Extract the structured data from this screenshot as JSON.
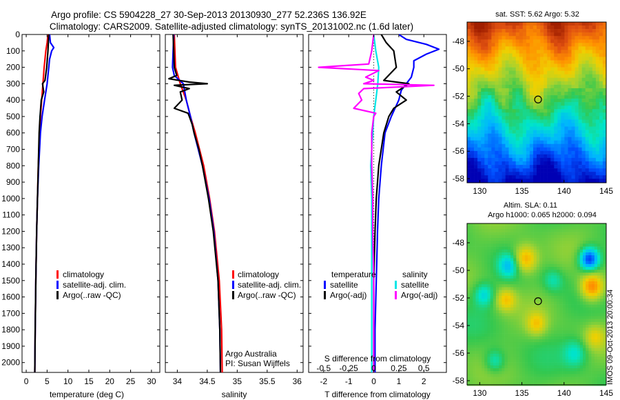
{
  "header": {
    "title_line1": "Argo profile: CS 5904228_27 30-Sep-2013 20130930_277 52.236S 136.92E",
    "title_line2": "Climatology: CARS2009. Satellite-adjusted climatology: synTS_20131002.nc (1.6d later)"
  },
  "colors": {
    "climatology": "#ff0000",
    "satellite": "#0000ff",
    "argo": "#000000",
    "salinity_satellite": "#00e6e6",
    "salinity_argo": "#ff00ff"
  },
  "chart_data": [
    {
      "type": "line",
      "id": "temperature",
      "xlabel": "temperature (deg C)",
      "xlim": [
        -1,
        32
      ],
      "ylim": [
        0,
        2060
      ],
      "ylabel": "",
      "x_ticks": [
        "0",
        "5",
        "10",
        "15",
        "20",
        "25",
        "30"
      ],
      "y_ticks": [
        "0",
        "100",
        "200",
        "300",
        "400",
        "500",
        "600",
        "700",
        "800",
        "900",
        "1000",
        "1100",
        "1200",
        "1300",
        "1400",
        "1500",
        "1600",
        "1700",
        "1800",
        "1900",
        "2000"
      ],
      "legend": [
        "climatology",
        "satellite-adj. clim.",
        "Argo(..raw -QC)"
      ],
      "series": [
        {
          "name": "climatology",
          "color_key": "climatology",
          "depth": [
            0,
            50,
            100,
            200,
            300,
            400,
            500,
            600,
            800,
            1000,
            1200,
            1500,
            1800,
            2060
          ],
          "values": [
            5.2,
            5.0,
            4.7,
            4.3,
            4.0,
            3.7,
            3.4,
            3.2,
            2.9,
            2.7,
            2.5,
            2.3,
            2.15,
            2.05
          ]
        },
        {
          "name": "satellite-adj. clim.",
          "color_key": "satellite",
          "depth": [
            0,
            50,
            80,
            100,
            150,
            200,
            300,
            400,
            500,
            600,
            800,
            1000,
            1200,
            1500,
            1800,
            2060
          ],
          "values": [
            5.6,
            5.8,
            6.6,
            6.1,
            5.6,
            5.4,
            5.0,
            4.4,
            3.8,
            3.4,
            3.0,
            2.7,
            2.5,
            2.3,
            2.15,
            2.05
          ]
        },
        {
          "name": "Argo(..raw -QC)",
          "color_key": "argo",
          "depth": [
            0,
            50,
            100,
            200,
            280,
            300,
            350,
            400,
            500,
            600,
            800,
            1000,
            1200,
            1500,
            1800,
            2060
          ],
          "values": [
            5.4,
            5.3,
            5.2,
            4.9,
            4.5,
            3.9,
            4.2,
            3.6,
            3.3,
            3.1,
            2.9,
            2.7,
            2.5,
            2.3,
            2.15,
            2.05
          ]
        }
      ]
    },
    {
      "type": "line",
      "id": "salinity",
      "xlabel": "salinity",
      "xlim": [
        33.8,
        36.1
      ],
      "ylim": [
        0,
        2060
      ],
      "x_ticks": [
        "34",
        "34.5",
        "35",
        "35.5",
        "36"
      ],
      "legend": [
        "climatology",
        "satellite-adj. clim.",
        "Argo(..raw -QC)"
      ],
      "annotation_lines": [
        "Argo Australia",
        "PI: Susan Wijffels"
      ],
      "series": [
        {
          "name": "climatology",
          "color_key": "climatology",
          "depth": [
            0,
            100,
            200,
            300,
            400,
            500,
            600,
            800,
            1000,
            1200,
            1500,
            1800,
            2060
          ],
          "values": [
            33.95,
            33.96,
            33.97,
            34.05,
            34.15,
            34.22,
            34.3,
            34.44,
            34.54,
            34.62,
            34.7,
            34.74,
            34.75
          ]
        },
        {
          "name": "satellite-adj. clim.",
          "color_key": "satellite",
          "depth": [
            0,
            100,
            200,
            250,
            300,
            400,
            500,
            600,
            800,
            1000,
            1200,
            1500,
            1800,
            2060
          ],
          "values": [
            33.94,
            33.93,
            33.92,
            33.95,
            34.1,
            34.15,
            34.22,
            34.28,
            34.42,
            34.53,
            34.61,
            34.68,
            34.71,
            34.72
          ]
        },
        {
          "name": "Argo(..raw -QC)",
          "color_key": "argo",
          "depth": [
            0,
            100,
            200,
            250,
            270,
            290,
            300,
            310,
            330,
            350,
            400,
            450,
            480,
            500,
            550,
            600,
            700,
            800,
            1000,
            1200,
            1500,
            1800,
            2060
          ],
          "values": [
            33.93,
            33.94,
            33.95,
            33.99,
            33.86,
            34.2,
            34.5,
            33.95,
            34.2,
            34.05,
            34.08,
            33.95,
            34.18,
            34.2,
            34.25,
            34.28,
            34.36,
            34.42,
            34.52,
            34.6,
            34.68,
            34.71,
            34.72
          ]
        }
      ]
    },
    {
      "type": "line",
      "id": "difference",
      "xlabel": "T difference from climatology",
      "x2label": "S difference from climatology",
      "xlim": [
        -2.6,
        2.9
      ],
      "x2lim": [
        -0.65,
        0.725
      ],
      "ylim": [
        0,
        2060
      ],
      "x_ticks": [
        "-2",
        "-1",
        "0",
        "1",
        "2"
      ],
      "x2_ticks": [
        "-0.5",
        "-0.25",
        "0",
        "0.25",
        "0.5"
      ],
      "legend_temperature_title": "temperature",
      "legend_salinity_title": "salinity",
      "legend": [
        "satellite",
        "Argo(-adj)",
        "satellite",
        "Argo(-adj)"
      ],
      "series": [
        {
          "name": "temperature satellite",
          "color_key": "satellite",
          "axis": "T",
          "depth": [
            0,
            30,
            60,
            90,
            120,
            160,
            200,
            260,
            300,
            340,
            400,
            500,
            600,
            800,
            1000,
            1200,
            1500,
            1800,
            2060
          ],
          "values": [
            1.0,
            1.3,
            2.1,
            2.6,
            2.1,
            1.6,
            1.6,
            1.5,
            1.3,
            1.1,
            1.0,
            0.7,
            0.45,
            0.3,
            0.2,
            0.15,
            0.1,
            0.05,
            0.05
          ]
        },
        {
          "name": "temperature Argo(-adj)",
          "color_key": "argo",
          "axis": "T",
          "depth": [
            0,
            50,
            100,
            200,
            280,
            300,
            350,
            400,
            450,
            500,
            600,
            800,
            1000,
            1200,
            1500,
            1800,
            2060
          ],
          "values": [
            0.3,
            0.5,
            0.8,
            0.9,
            0.4,
            1.4,
            0.9,
            1.3,
            0.8,
            0.6,
            0.4,
            0.2,
            0.1,
            0.05,
            0.0,
            0.0,
            0.0
          ]
        },
        {
          "name": "salinity satellite",
          "color_key": "salinity_satellite",
          "axis": "S",
          "depth": [
            0,
            100,
            200,
            300,
            400,
            500,
            600,
            700,
            800,
            1000,
            1200,
            1500,
            1800,
            2060
          ],
          "values": [
            0.0,
            0.02,
            0.05,
            0.04,
            0.02,
            0.0,
            -0.01,
            -0.02,
            -0.03,
            -0.02,
            -0.02,
            -0.02,
            -0.02,
            -0.02
          ]
        },
        {
          "name": "salinity Argo(-adj)",
          "color_key": "salinity_argo",
          "axis": "S",
          "depth": [
            0,
            100,
            180,
            200,
            220,
            260,
            280,
            300,
            310,
            330,
            360,
            400,
            450,
            480,
            500,
            600,
            800,
            1000,
            1200,
            1500,
            1800,
            2060
          ],
          "values": [
            0.0,
            -0.02,
            -0.05,
            -0.55,
            0.05,
            -0.08,
            0.0,
            -0.1,
            0.6,
            -0.1,
            -0.15,
            -0.12,
            -0.2,
            0.02,
            0.0,
            -0.02,
            -0.02,
            -0.01,
            -0.01,
            0.0,
            0.0,
            0.0
          ]
        }
      ]
    },
    {
      "type": "heatmap",
      "id": "sst_map",
      "title": "sat. SST: 5.62 Argo: 5.32",
      "xlim": [
        128.5,
        145
      ],
      "ylim": [
        -58.3,
        -46.6
      ],
      "x_ticks": [
        "130",
        "135",
        "140",
        "145"
      ],
      "y_ticks": [
        "-48",
        "-50",
        "-52",
        "-54",
        "-56",
        "-58"
      ],
      "marker": {
        "lon": 136.92,
        "lat": -52.236
      },
      "colorscale": [
        "#0000b4",
        "#0050ff",
        "#00b4ff",
        "#00e6c8",
        "#32c850",
        "#a0d232",
        "#f0d000",
        "#ff9000",
        "#e05010",
        "#a01e00"
      ]
    },
    {
      "type": "heatmap",
      "id": "sla_map",
      "title_line1": "Altim. SLA: 0.11",
      "title_line2": "Argo h1000: 0.065 h2000: 0.094",
      "xlim": [
        128.5,
        145
      ],
      "ylim": [
        -58.3,
        -46.6
      ],
      "x_ticks": [
        "130",
        "135",
        "140",
        "145"
      ],
      "y_ticks": [
        "-48",
        "-50",
        "-52",
        "-54",
        "-56",
        "-58"
      ],
      "marker": {
        "lon": 136.92,
        "lat": -52.236
      },
      "colorscale": [
        "#0000b4",
        "#0050ff",
        "#00b4ff",
        "#00e6c8",
        "#32c850",
        "#a0d232",
        "#f0d000",
        "#ff9000",
        "#e05010",
        "#a01e00"
      ]
    }
  ],
  "footer": {
    "imos_stamp": "IMOS 09-Oct-2013 20:00:34"
  }
}
